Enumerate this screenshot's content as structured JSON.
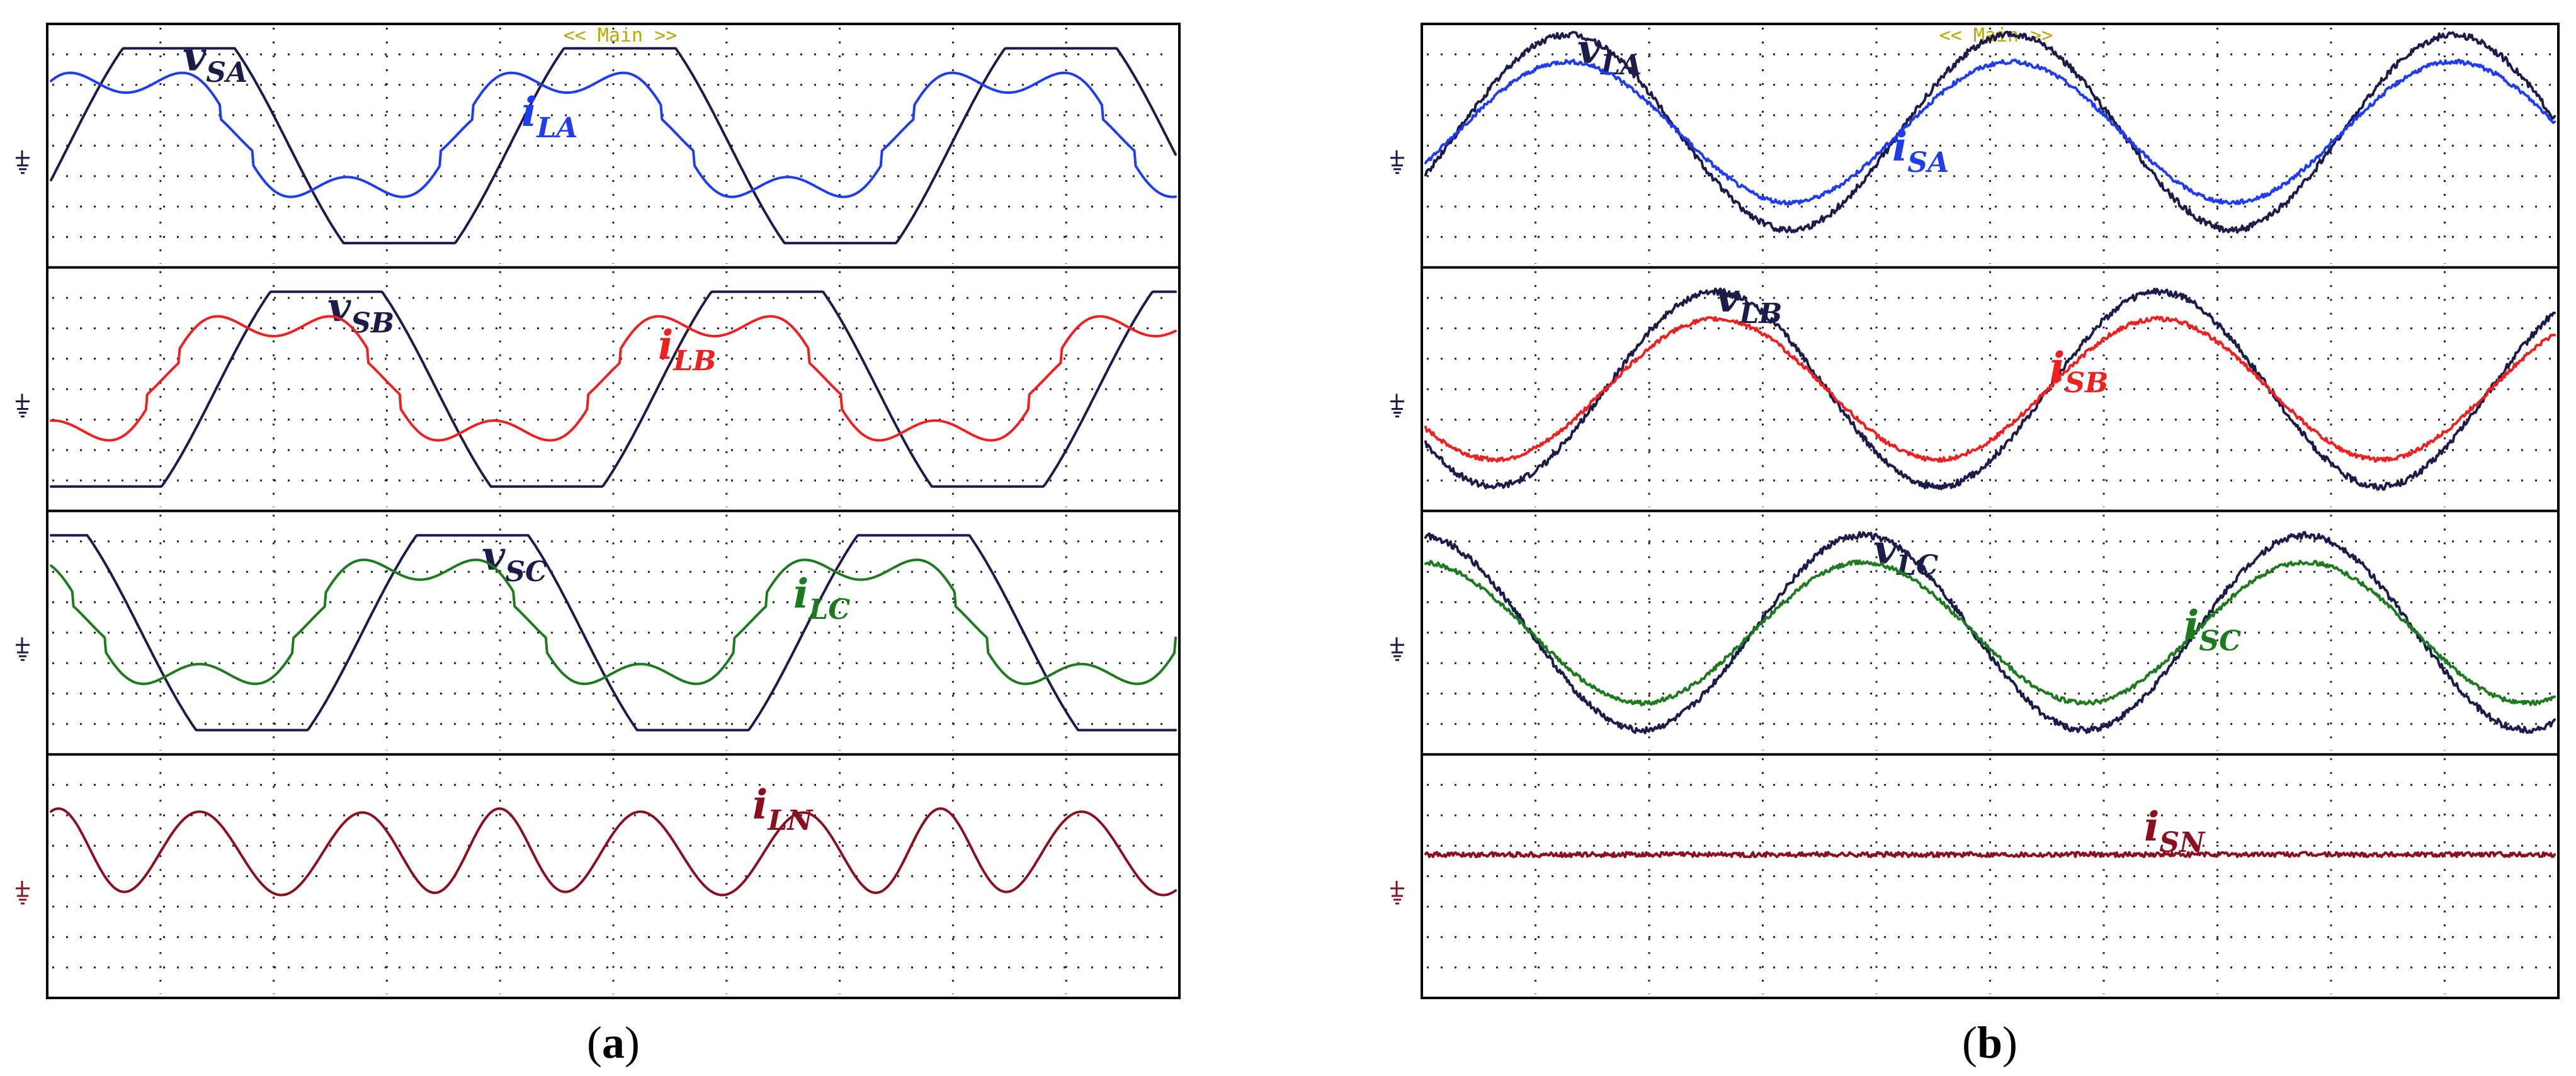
{
  "chart_data": [
    {
      "type": "line",
      "panel": "a",
      "caption": "(a)",
      "banner": "<< Main >>",
      "channels": [
        {
          "series": [
            {
              "name": "vSA",
              "base": "v",
              "sub": "SA",
              "color": "#1c1c4a",
              "shape": "trap",
              "amp": 3.6,
              "phase": -0.25,
              "flat": 0.3
            },
            {
              "name": "iLA",
              "base": "i",
              "sub": "LA",
              "color": "#1e3cf0",
              "shape": "harm",
              "amp": 2.4,
              "phase": 0.5,
              "h3": 0.35,
              "offset": 0.4
            }
          ]
        },
        {
          "series": [
            {
              "name": "vSB",
              "base": "v",
              "sub": "SB",
              "color": "#1c1c4a",
              "shape": "trap",
              "amp": 3.6,
              "phase": -2.35,
              "flat": 0.3
            },
            {
              "name": "iLB",
              "base": "i",
              "sub": "LB",
              "color": "#ee2020",
              "shape": "harm",
              "amp": 2.4,
              "phase": -1.6,
              "h3": 0.35,
              "offset": 0.4
            }
          ]
        },
        {
          "series": [
            {
              "name": "vSC",
              "base": "v",
              "sub": "SC",
              "color": "#1c1c4a",
              "shape": "trap",
              "amp": 3.6,
              "phase": 1.85,
              "flat": 0.3
            },
            {
              "name": "iLC",
              "base": "i",
              "sub": "LC",
              "color": "#1e7a1e",
              "shape": "harm",
              "amp": 2.4,
              "phase": 2.6,
              "h3": 0.35,
              "offset": 0.4
            }
          ]
        },
        {
          "series": [
            {
              "name": "iLN",
              "base": "i",
              "sub": "LN",
              "color": "#8a1020",
              "shape": "neutral",
              "amp": 1.6,
              "phase": 0.4,
              "offset": 0.9
            }
          ]
        }
      ]
    },
    {
      "type": "line",
      "panel": "b",
      "caption": "(b)",
      "banner": "<< Main >>",
      "channels": [
        {
          "series": [
            {
              "name": "vLA",
              "base": "v",
              "sub": "LA",
              "color": "#1c1c4a",
              "shape": "sine",
              "amp": 3.6,
              "phase": -0.45,
              "noise": 0.12,
              "offset": 0.5
            },
            {
              "name": "iSA",
              "base": "i",
              "sub": "SA",
              "color": "#1e3cf0",
              "shape": "sine",
              "amp": 2.6,
              "phase": -0.45,
              "noise": 0.08,
              "offset": 0.5
            }
          ]
        },
        {
          "series": [
            {
              "name": "vLB",
              "base": "v",
              "sub": "LB",
              "color": "#1c1c4a",
              "shape": "sine",
              "amp": 3.6,
              "phase": -2.55,
              "noise": 0.12
            },
            {
              "name": "iSB",
              "base": "i",
              "sub": "SB",
              "color": "#ee2020",
              "shape": "sine",
              "amp": 2.6,
              "phase": -2.55,
              "noise": 0.08
            }
          ]
        },
        {
          "series": [
            {
              "name": "vLC",
              "base": "v",
              "sub": "LC",
              "color": "#1c1c4a",
              "shape": "sine",
              "amp": 3.6,
              "phase": 1.65,
              "noise": 0.12
            },
            {
              "name": "iSC",
              "base": "i",
              "sub": "SC",
              "color": "#1e7a1e",
              "shape": "sine",
              "amp": 2.6,
              "phase": 1.65,
              "noise": 0.08
            }
          ]
        },
        {
          "series": [
            {
              "name": "iSN",
              "base": "i",
              "sub": "SN",
              "color": "#8a1020",
              "shape": "flat",
              "amp": 0.0,
              "phase": 0,
              "noise": 0.09,
              "offset": 0.8
            }
          ]
        }
      ]
    }
  ]
}
